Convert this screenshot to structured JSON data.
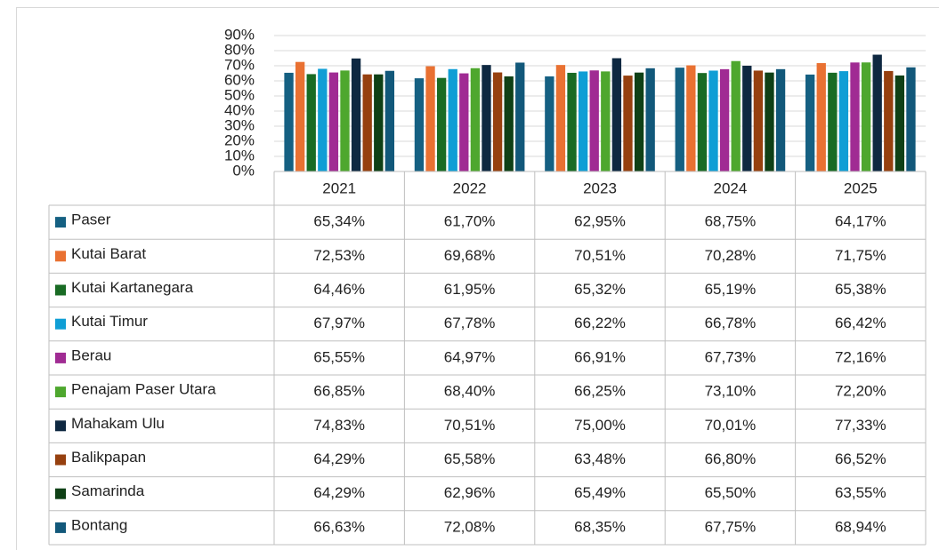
{
  "chart_data": {
    "type": "bar",
    "categories": [
      "2021",
      "2022",
      "2023",
      "2024",
      "2025"
    ],
    "ylim": [
      0,
      90
    ],
    "yticks": [
      {
        "value": 0,
        "label": "0%"
      },
      {
        "value": 10,
        "label": "10%"
      },
      {
        "value": 20,
        "label": "20%"
      },
      {
        "value": 30,
        "label": "30%"
      },
      {
        "value": 40,
        "label": "40%"
      },
      {
        "value": 50,
        "label": "50%"
      },
      {
        "value": 60,
        "label": "60%"
      },
      {
        "value": 70,
        "label": "70%"
      },
      {
        "value": 80,
        "label": "80%"
      },
      {
        "value": 90,
        "label": "90%"
      }
    ],
    "grid": true,
    "series": [
      {
        "name": "Paser",
        "color": "#156082",
        "values": [
          65.34,
          61.7,
          62.95,
          68.75,
          64.17
        ],
        "value_labels": [
          "65,34%",
          "61,70%",
          "62,95%",
          "68,75%",
          "64,17%"
        ]
      },
      {
        "name": "Kutai Barat",
        "color": "#e97132",
        "values": [
          72.53,
          69.68,
          70.51,
          70.28,
          71.75
        ],
        "value_labels": [
          "72,53%",
          "69,68%",
          "70,51%",
          "70,28%",
          "71,75%"
        ]
      },
      {
        "name": "Kutai Kartanegara",
        "color": "#196b24",
        "values": [
          64.46,
          61.95,
          65.32,
          65.19,
          65.38
        ],
        "value_labels": [
          "64,46%",
          "61,95%",
          "65,32%",
          "65,19%",
          "65,38%"
        ]
      },
      {
        "name": "Kutai Timur",
        "color": "#0f9ed5",
        "values": [
          67.97,
          67.78,
          66.22,
          66.78,
          66.42
        ],
        "value_labels": [
          "67,97%",
          "67,78%",
          "66,22%",
          "66,78%",
          "66,42%"
        ]
      },
      {
        "name": "Berau",
        "color": "#a02b93",
        "values": [
          65.55,
          64.97,
          66.91,
          67.73,
          72.16
        ],
        "value_labels": [
          "65,55%",
          "64,97%",
          "66,91%",
          "67,73%",
          "72,16%"
        ]
      },
      {
        "name": "Penajam Paser Utara",
        "color": "#4ea72e",
        "values": [
          66.85,
          68.4,
          66.25,
          73.1,
          72.2
        ],
        "value_labels": [
          "66,85%",
          "68,40%",
          "66,25%",
          "73,10%",
          "72,20%"
        ]
      },
      {
        "name": "Mahakam Ulu",
        "color": "#0e2841",
        "values": [
          74.83,
          70.51,
          75.0,
          70.01,
          77.33
        ],
        "value_labels": [
          "74,83%",
          "70,51%",
          "75,00%",
          "70,01%",
          "77,33%"
        ]
      },
      {
        "name": "Balikpapan",
        "color": "#96400f",
        "values": [
          64.29,
          65.58,
          63.48,
          66.8,
          66.52
        ],
        "value_labels": [
          "64,29%",
          "65,58%",
          "63,48%",
          "66,80%",
          "66,52%"
        ]
      },
      {
        "name": "Samarinda",
        "color": "#0f4016",
        "values": [
          64.29,
          62.96,
          65.49,
          65.5,
          63.55
        ],
        "value_labels": [
          "64,29%",
          "62,96%",
          "65,49%",
          "65,50%",
          "63,55%"
        ]
      },
      {
        "name": "Bontang",
        "color": "#12587a",
        "values": [
          66.63,
          72.08,
          68.35,
          67.75,
          68.94
        ],
        "value_labels": [
          "66,63%",
          "72,08%",
          "68,35%",
          "67,75%",
          "68,94%"
        ]
      }
    ]
  }
}
